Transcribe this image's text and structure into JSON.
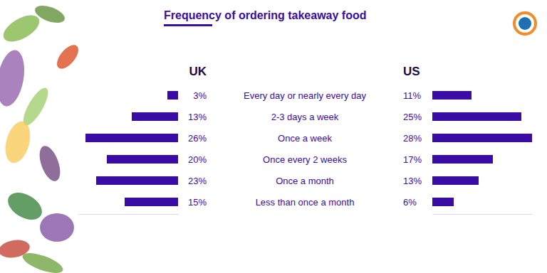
{
  "chart_data": {
    "type": "bar",
    "title": "Frequency of ordering takeaway food",
    "orientation": "horizontal",
    "categories": [
      "Every day or nearly every day",
      "2-3 days a week",
      "Once a week",
      "Once every 2 weeks",
      "Once a month",
      "Less than once a month"
    ],
    "series": [
      {
        "name": "UK",
        "color": "#3a0ca3",
        "values": [
          3,
          13,
          26,
          20,
          23,
          15
        ],
        "value_labels": [
          "3%",
          "13%",
          "26%",
          "20%",
          "23%",
          "15%"
        ]
      },
      {
        "name": "US",
        "color": "#3a0ca3",
        "values": [
          11,
          25,
          28,
          17,
          13,
          6
        ],
        "value_labels": [
          "11%",
          "25%",
          "28%",
          "17%",
          "13%",
          "6%"
        ]
      }
    ],
    "xlim": [
      0,
      28
    ],
    "data_labels": true,
    "tick_labels": "y"
  }
}
